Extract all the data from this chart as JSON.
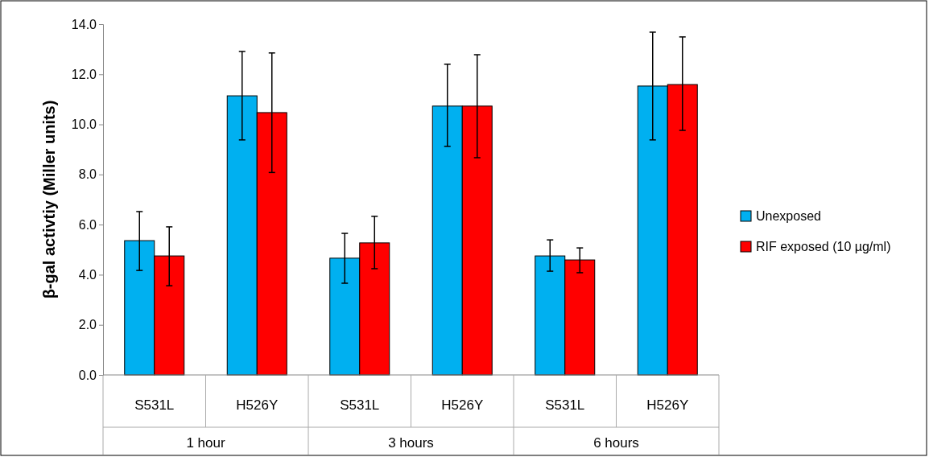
{
  "chart_data": {
    "type": "bar",
    "ylabel": "β-gal activtiy (Miller units)",
    "categories": [
      "S531L",
      "H526Y",
      "S531L",
      "H526Y",
      "S531L",
      "H526Y"
    ],
    "annotations": [
      "1 hour",
      "3 hours",
      "6 hours"
    ],
    "series": [
      {
        "name": "Unexposed",
        "color": "#00b0f0",
        "values": [
          5.36,
          11.14,
          4.66,
          10.73,
          4.75,
          11.53
        ],
        "errors": [
          [
            4.17,
            6.52
          ],
          [
            9.38,
            12.91
          ],
          [
            3.66,
            5.65
          ],
          [
            9.12,
            12.4
          ],
          [
            4.14,
            5.39
          ],
          [
            9.38,
            13.68
          ]
        ]
      },
      {
        "name": "RIF exposed (10 µg/ml)",
        "color": "#ff0000",
        "values": [
          4.75,
          10.47,
          5.27,
          10.73,
          4.59,
          11.59
        ],
        "errors": [
          [
            3.56,
            5.91
          ],
          [
            8.08,
            12.85
          ],
          [
            4.24,
            6.33
          ],
          [
            8.67,
            12.78
          ],
          [
            4.08,
            5.07
          ],
          [
            9.76,
            13.49
          ]
        ]
      }
    ],
    "ylim": [
      0,
      14
    ],
    "yticks": [
      {
        "value": 0,
        "label": "0.0"
      },
      {
        "value": 2,
        "label": "2.0"
      },
      {
        "value": 4,
        "label": "4.0"
      },
      {
        "value": 6,
        "label": "6.0"
      },
      {
        "value": 8,
        "label": "8.0"
      },
      {
        "value": 10,
        "label": "10.0"
      },
      {
        "value": 12,
        "label": "12.0"
      },
      {
        "value": 14,
        "label": "14.0"
      }
    ],
    "grid": false,
    "legend": "right"
  }
}
